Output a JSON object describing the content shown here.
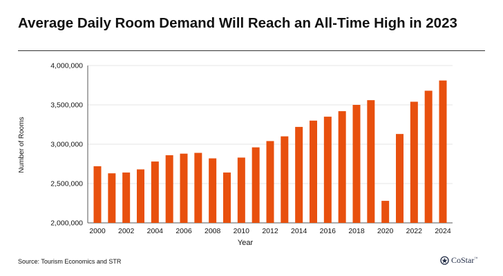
{
  "title": "Average Daily Room Demand Will Reach an All-Time High in 2023",
  "source": "Source: Tourism Economics and STR",
  "brand": "CoStar",
  "brand_mark": "™",
  "colors": {
    "bar": "#E8500E",
    "title": "#111111",
    "logo": "#1f2a44"
  },
  "chart_data": {
    "type": "bar",
    "title": "Average Daily Room Demand Will Reach an All-Time High in 2023",
    "xlabel": "Year",
    "ylabel": "Number of Rooms",
    "ylim": [
      2000000,
      4000000
    ],
    "yticks": [
      2000000,
      2500000,
      3000000,
      3500000,
      4000000
    ],
    "ytick_labels": [
      "2,000,000",
      "2,500,000",
      "3,000,000",
      "3,500,000",
      "4,000,000"
    ],
    "xtick_labels": [
      "2000",
      "2002",
      "2004",
      "2006",
      "2008",
      "2010",
      "2012",
      "2014",
      "2016",
      "2018",
      "2020",
      "2022",
      "2024"
    ],
    "grid": true,
    "categories": [
      "2000",
      "2001",
      "2002",
      "2003",
      "2004",
      "2005",
      "2006",
      "2007",
      "2008",
      "2009",
      "2010",
      "2011",
      "2012",
      "2013",
      "2014",
      "2015",
      "2016",
      "2017",
      "2018",
      "2019",
      "2020",
      "2021",
      "2022",
      "2023",
      "2024"
    ],
    "values": [
      2720000,
      2630000,
      2640000,
      2680000,
      2780000,
      2860000,
      2880000,
      2890000,
      2820000,
      2640000,
      2830000,
      2960000,
      3040000,
      3100000,
      3220000,
      3300000,
      3350000,
      3420000,
      3500000,
      3560000,
      2280000,
      3130000,
      3540000,
      3680000,
      3810000
    ]
  }
}
